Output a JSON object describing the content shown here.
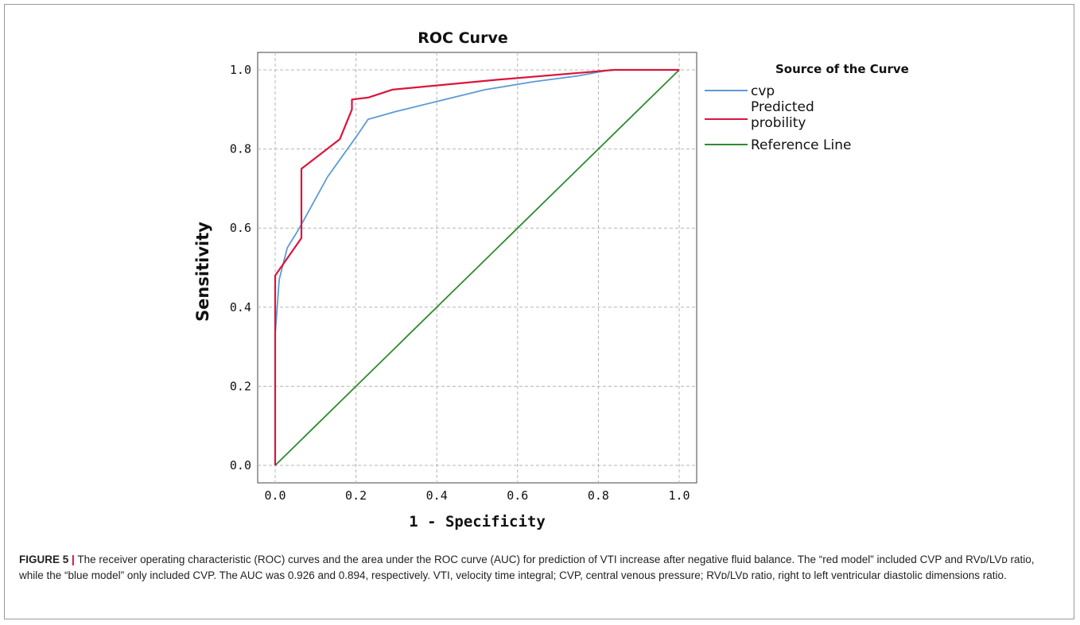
{
  "caption": {
    "label": "FIGURE 5",
    "separator": "|",
    "text": "The receiver operating characteristic (ROC) curves and the area under the ROC curve (AUC) for prediction of VTI increase after negative fluid balance. The “red model” included CVP and RVᴅ/LVᴅ ratio, while the “blue model” only included CVP. The AUC was 0.926 and 0.894, respectively. VTI, velocity time integral; CVP, central venous pressure; RVᴅ/LVᴅ ratio, right to left ventricular diastolic dimensions ratio."
  },
  "chart_data": {
    "type": "line",
    "title": "ROC Curve",
    "xlabel": "1 - Specificity",
    "ylabel": "Sensitivity",
    "xlim": [
      0,
      1
    ],
    "ylim": [
      0,
      1
    ],
    "xticks": [
      "0.0",
      "0.2",
      "0.4",
      "0.6",
      "0.8",
      "1.0"
    ],
    "yticks": [
      "0.0",
      "0.2",
      "0.4",
      "0.6",
      "0.8",
      "1.0"
    ],
    "grid": true,
    "legend": {
      "title": "Source of the Curve",
      "placement": "right"
    },
    "series": [
      {
        "name": "cvp",
        "color": "#5b9bd5",
        "x": [
          0,
          0,
          0.01,
          0.03,
          0.06,
          0.13,
          0.2,
          0.23,
          0.3,
          0.4,
          0.52,
          0.64,
          0.75,
          0.83,
          1.0
        ],
        "y": [
          0,
          0.33,
          0.47,
          0.55,
          0.6,
          0.73,
          0.83,
          0.875,
          0.895,
          0.92,
          0.95,
          0.97,
          0.985,
          1.0,
          1.0
        ]
      },
      {
        "name": "Predicted probility",
        "color": "#dc143c",
        "x": [
          0,
          0,
          0.065,
          0.065,
          0.065,
          0.16,
          0.19,
          0.19,
          0.23,
          0.29,
          0.55,
          0.84,
          1.0
        ],
        "y": [
          0,
          0.48,
          0.575,
          0.575,
          0.75,
          0.825,
          0.9,
          0.925,
          0.93,
          0.95,
          0.975,
          1.0,
          1.0
        ]
      },
      {
        "name": "Reference Line",
        "color": "#2e8b2e",
        "x": [
          0,
          1
        ],
        "y": [
          0,
          1
        ]
      }
    ]
  }
}
